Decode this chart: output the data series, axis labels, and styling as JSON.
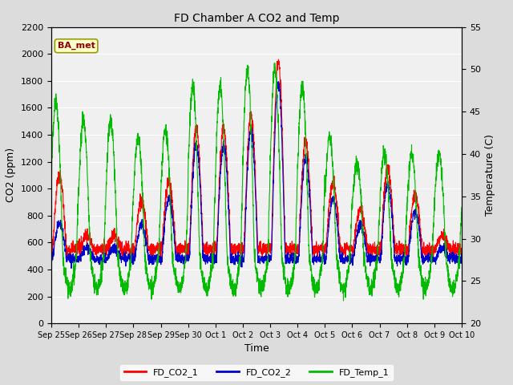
{
  "title": "FD Chamber A CO2 and Temp",
  "xlabel": "Time",
  "ylabel_left": "CO2 (ppm)",
  "ylabel_right": "Temperature (C)",
  "annotation_text": "BA_met",
  "annotation_color": "#8B0000",
  "annotation_bg": "#FFFFCC",
  "annotation_border": "#999900",
  "ylim_left": [
    0,
    2200
  ],
  "ylim_right": [
    20,
    55
  ],
  "yticks_left": [
    0,
    200,
    400,
    600,
    800,
    1000,
    1200,
    1400,
    1600,
    1800,
    2000,
    2200
  ],
  "yticks_right": [
    20,
    25,
    30,
    35,
    40,
    45,
    50,
    55
  ],
  "x_tick_labels": [
    "Sep 25",
    "Sep 26",
    "Sep 27",
    "Sep 28",
    "Sep 29",
    "Sep 30",
    "Oct 1",
    "Oct 2",
    "Oct 3",
    "Oct 4",
    "Oct 5",
    "Oct 6",
    "Oct 7",
    "Oct 8",
    "Oct 9",
    "Oct 10"
  ],
  "color_co2_1": "#FF0000",
  "color_co2_2": "#0000CC",
  "color_temp": "#00BB00",
  "legend_labels": [
    "FD_CO2_1",
    "FD_CO2_2",
    "FD_Temp_1"
  ],
  "fig_bg_color": "#DCDCDC",
  "plot_bg_color": "#F0F0F0",
  "grid_color": "#FFFFFF",
  "linewidth": 0.8,
  "n_days": 15,
  "figsize": [
    6.4,
    4.8
  ],
  "dpi": 100
}
